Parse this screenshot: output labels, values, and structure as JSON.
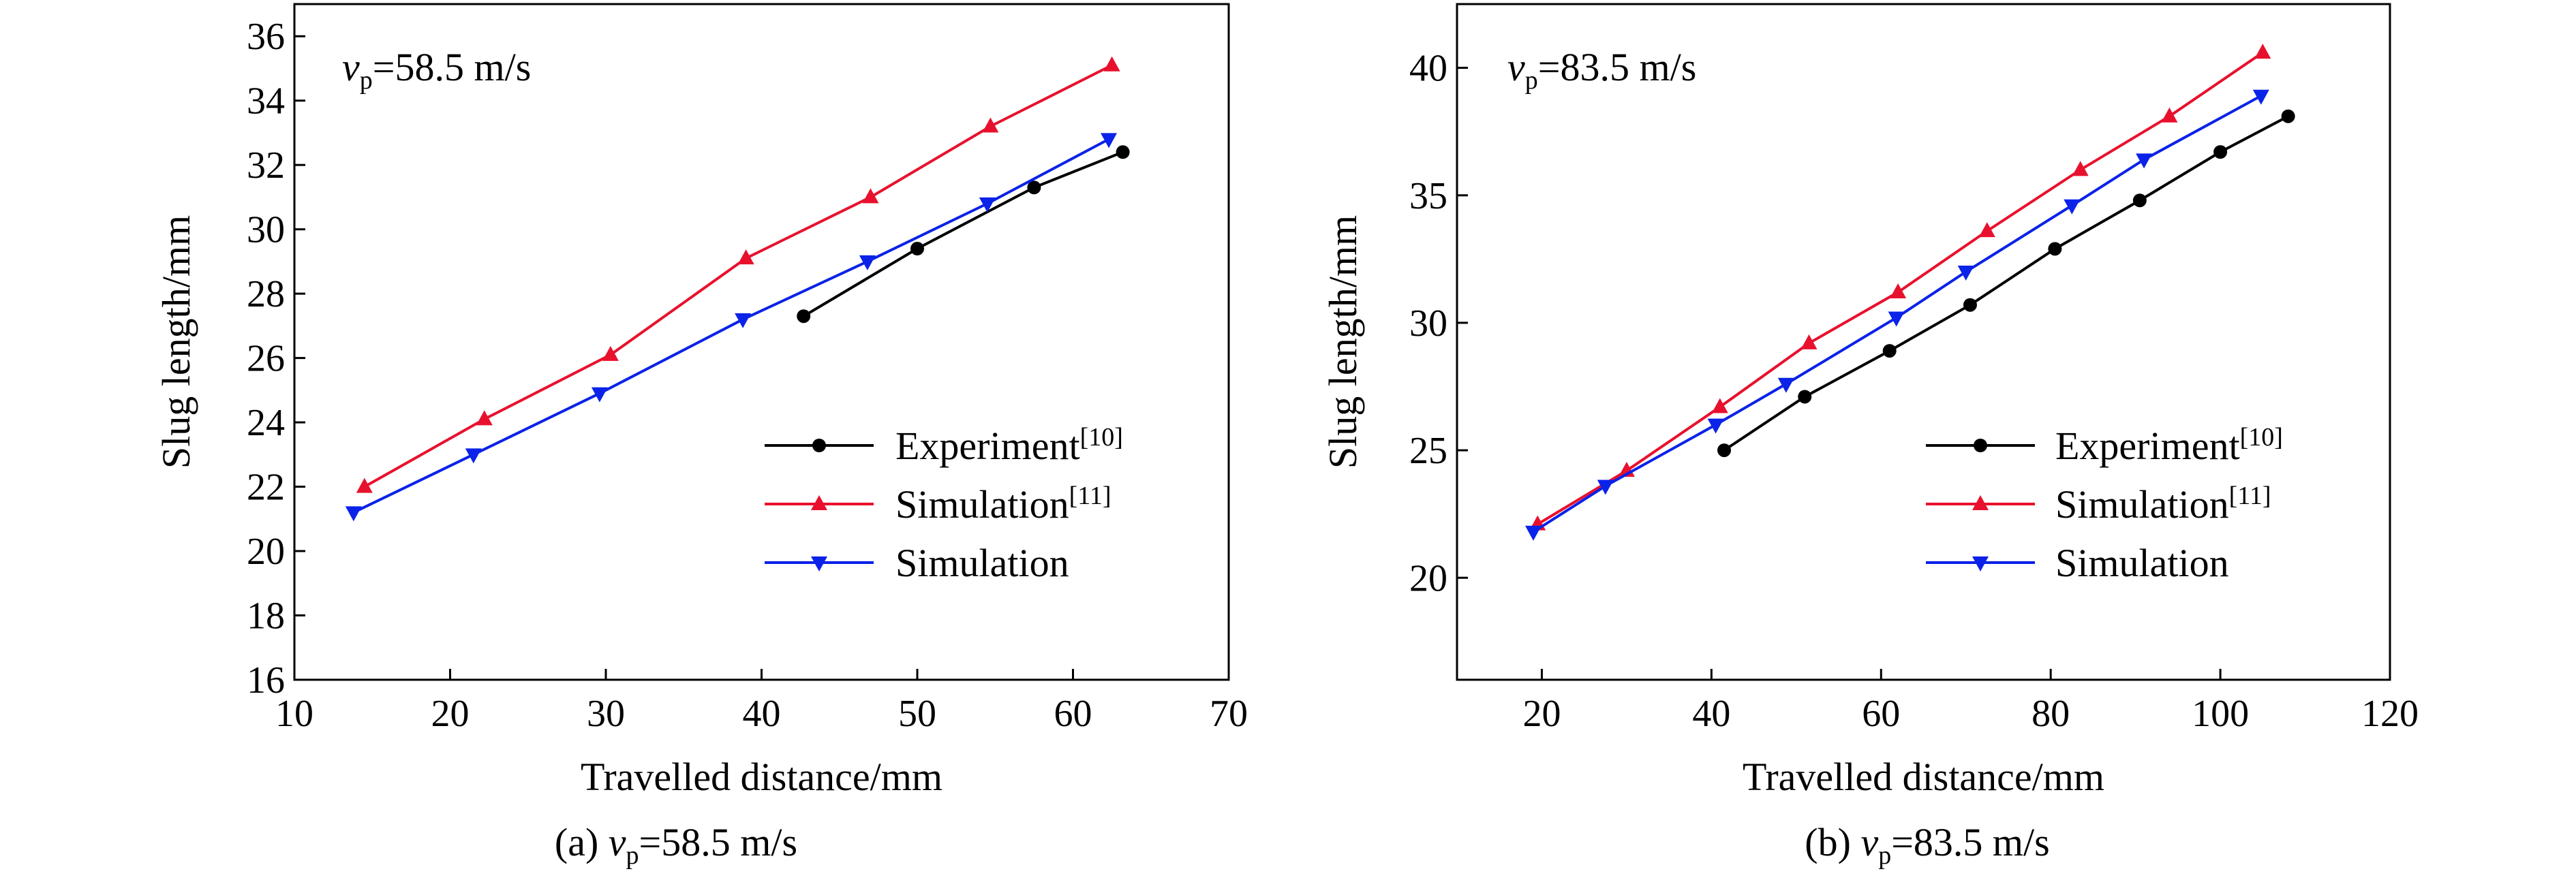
{
  "chart_data": [
    {
      "type": "line",
      "caption": {
        "prefix": "(a) ",
        "var": "v",
        "sub": "p",
        "rest": "=58.5 m/s"
      },
      "annotation": {
        "var": "v",
        "sub": "p",
        "rest": "=58.5 m/s"
      },
      "xlabel": "Travelled distance/mm",
      "ylabel": "Slug length/mm",
      "xlim": [
        10,
        70
      ],
      "ylim": [
        16,
        37
      ],
      "xticks": [
        10,
        20,
        30,
        40,
        50,
        60,
        70
      ],
      "yticks": [
        16,
        18,
        20,
        22,
        24,
        26,
        28,
        30,
        32,
        34,
        36
      ],
      "legend_position": "lower-right",
      "series": [
        {
          "name": "Experiment",
          "ref": "[10]",
          "color": "#000000",
          "marker": "circle",
          "x": [
            42.7,
            50.0,
            57.5,
            63.2
          ],
          "y": [
            27.3,
            29.4,
            31.3,
            32.4
          ]
        },
        {
          "name": "Simulation",
          "ref": "[11]",
          "color": "#e8112d",
          "marker": "triangle-up",
          "x": [
            14.5,
            22.2,
            30.3,
            39.0,
            47.0,
            54.7,
            62.5
          ],
          "y": [
            22.0,
            24.1,
            26.1,
            29.1,
            31.0,
            33.2,
            35.1
          ]
        },
        {
          "name": "Simulation",
          "ref": "",
          "color": "#0b22e8",
          "marker": "triangle-down",
          "x": [
            13.8,
            21.5,
            29.6,
            38.8,
            46.8,
            54.5,
            62.3
          ],
          "y": [
            21.2,
            23.0,
            24.9,
            27.2,
            29.0,
            30.8,
            32.8
          ]
        }
      ]
    },
    {
      "type": "line",
      "caption": {
        "prefix": "(b) ",
        "var": "v",
        "sub": "p",
        "rest": "=83.5 m/s"
      },
      "annotation": {
        "var": "v",
        "sub": "p",
        "rest": "=83.5 m/s"
      },
      "xlabel": "Travelled distance/mm",
      "ylabel": "Slug length/mm",
      "xlim": [
        10,
        120
      ],
      "ylim": [
        16,
        42.5
      ],
      "xticks": [
        20,
        40,
        60,
        80,
        100,
        120
      ],
      "yticks": [
        20,
        25,
        30,
        35,
        40
      ],
      "legend_position": "lower-right",
      "series": [
        {
          "name": "Experiment",
          "ref": "[10]",
          "color": "#000000",
          "marker": "circle",
          "x": [
            41.5,
            51.0,
            61.0,
            70.5,
            80.5,
            90.5,
            100.0,
            108.0
          ],
          "y": [
            25.0,
            27.1,
            28.9,
            30.7,
            32.9,
            34.8,
            36.7,
            38.1
          ]
        },
        {
          "name": "Simulation",
          "ref": "[11]",
          "color": "#e8112d",
          "marker": "triangle-up",
          "x": [
            19.5,
            30.0,
            41.0,
            51.5,
            62.0,
            72.5,
            83.5,
            94.0,
            105.0
          ],
          "y": [
            22.1,
            24.2,
            26.7,
            29.2,
            31.2,
            33.6,
            36.0,
            38.1,
            40.6
          ]
        },
        {
          "name": "Simulation",
          "ref": "",
          "color": "#0b22e8",
          "marker": "triangle-down",
          "x": [
            19.0,
            27.5,
            40.5,
            48.8,
            61.8,
            70.0,
            82.5,
            91.0,
            104.8
          ],
          "y": [
            21.8,
            23.6,
            26.0,
            27.6,
            30.2,
            32.0,
            34.6,
            36.4,
            38.9
          ]
        }
      ]
    }
  ]
}
